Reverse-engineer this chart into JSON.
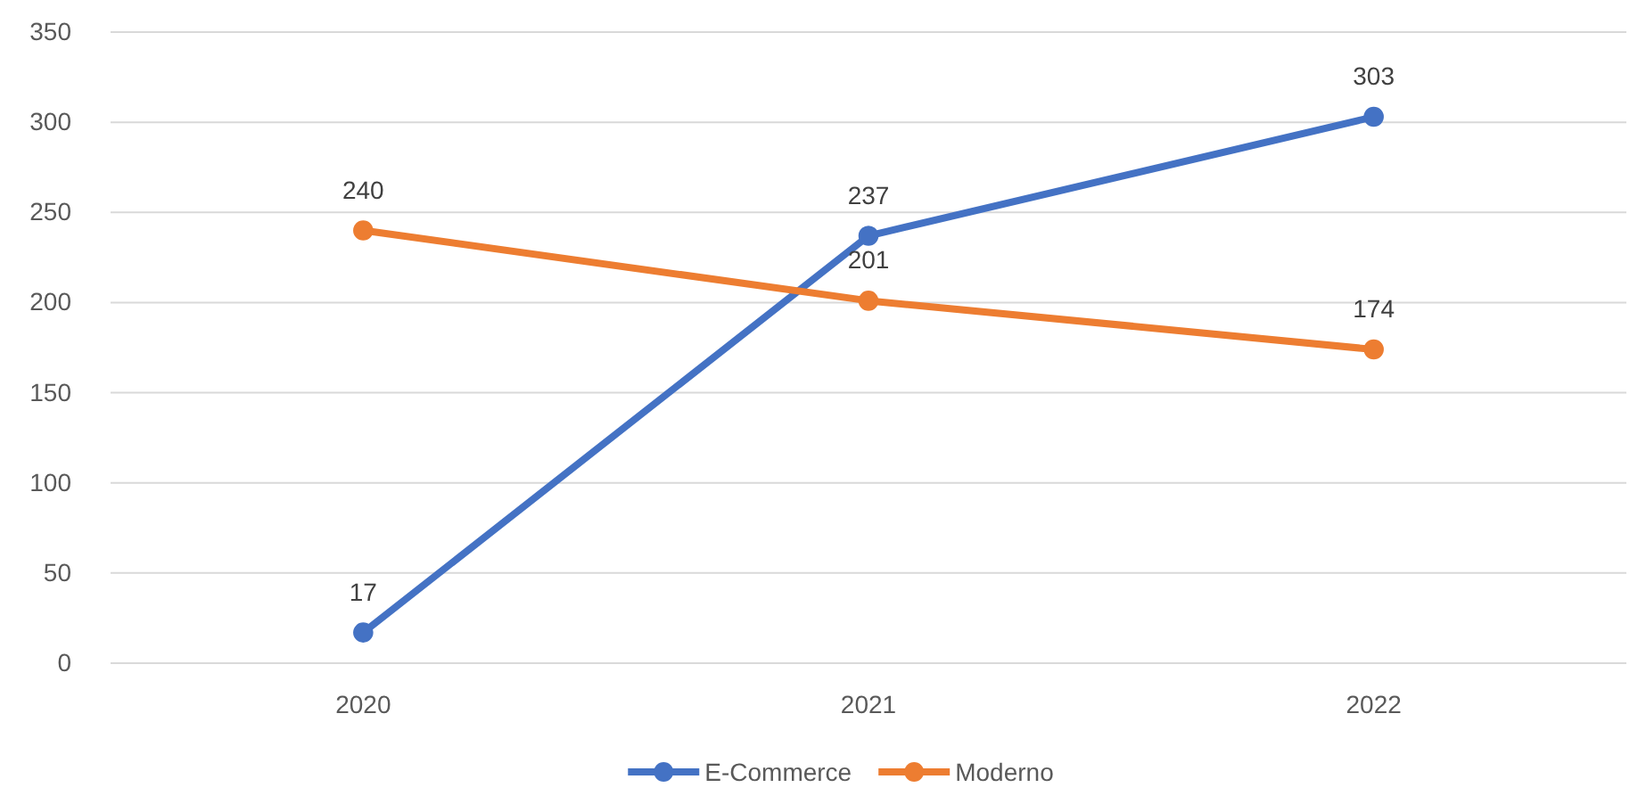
{
  "chart_data": {
    "type": "line",
    "categories": [
      "2020",
      "2021",
      "2022"
    ],
    "series": [
      {
        "name": "E-Commerce",
        "color": "#4472c4",
        "values": [
          17,
          237,
          303
        ]
      },
      {
        "name": "Moderno",
        "color": "#ed7d31",
        "values": [
          240,
          201,
          174
        ]
      }
    ],
    "ylim": [
      0,
      350
    ],
    "yticks": [
      0,
      50,
      100,
      150,
      200,
      250,
      300,
      350
    ],
    "grid": "y",
    "legend": "bottom",
    "marker": "circle",
    "line_style": "solid",
    "data_labels": true
  }
}
